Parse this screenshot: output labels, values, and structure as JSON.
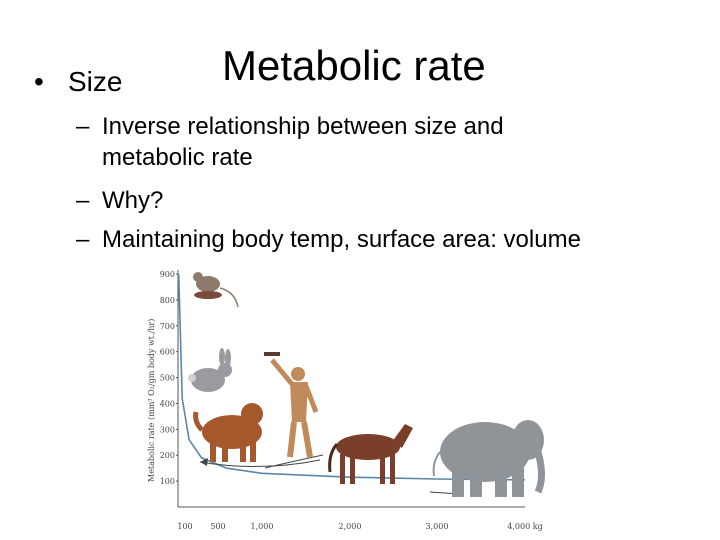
{
  "slide": {
    "title": "Metabolic rate",
    "bullet": "Size",
    "subbullets": [
      "Inverse relationship between size and",
      "metabolic rate",
      "Why?",
      "Maintaining body temp, surface area: volume"
    ],
    "dash": "–",
    "bullet_symbol": "•"
  },
  "chart_data": {
    "type": "line",
    "title": "",
    "xlabel": "",
    "ylabel": "Metabolic rate (mm³ O₂/gm body wt./hr)",
    "x_unit": "kg",
    "x_ticks": [
      "100",
      "500",
      "1,000",
      "2,000",
      "3,000",
      "4,000 kg"
    ],
    "y_ticks": [
      "100",
      "200",
      "300",
      "400",
      "500",
      "600",
      "700",
      "800",
      "900"
    ],
    "ylim": [
      0,
      900
    ],
    "series": [
      {
        "values_x": [
          10,
          60,
          150,
          300,
          600,
          1000,
          2000,
          3000,
          4000
        ],
        "values_y": [
          900,
          420,
          260,
          190,
          150,
          130,
          115,
          108,
          105
        ]
      }
    ],
    "animals": [
      "mouse-icon",
      "rabbit-icon",
      "dog-icon",
      "human-icon",
      "horse-icon",
      "elephant-icon"
    ],
    "colors": {
      "curve": "#5a87a8",
      "arrow": "#444444"
    }
  }
}
